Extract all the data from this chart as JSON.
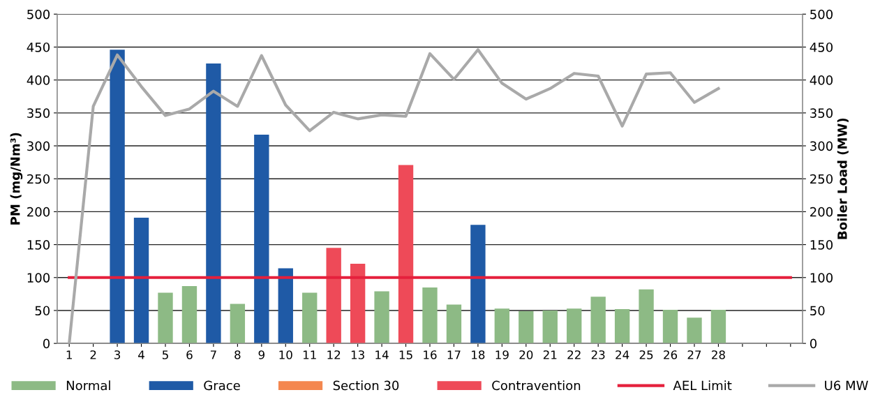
{
  "chart_data": {
    "type": "bar",
    "ylabel": "PM (mg/Nm³)",
    "y2label": "Boiler Load (MW)",
    "categories": [
      "1",
      "2",
      "3",
      "4",
      "5",
      "6",
      "7",
      "8",
      "9",
      "10",
      "11",
      "12",
      "13",
      "14",
      "15",
      "16",
      "17",
      "18",
      "19",
      "20",
      "21",
      "22",
      "23",
      "24",
      "25",
      "26",
      "27",
      "28",
      null,
      null,
      null
    ],
    "series": [
      {
        "name": "Normal",
        "color": "#8dba85",
        "values": [
          null,
          null,
          null,
          null,
          77,
          87,
          null,
          60,
          null,
          null,
          77,
          null,
          null,
          79,
          null,
          85,
          59,
          null,
          53,
          49,
          50,
          53,
          71,
          52,
          82,
          51,
          39,
          51,
          null,
          null,
          null
        ]
      },
      {
        "name": "Grace",
        "color": "#1f5aa6",
        "values": [
          null,
          null,
          446,
          191,
          null,
          null,
          425,
          null,
          317,
          114,
          null,
          null,
          null,
          null,
          null,
          null,
          null,
          180,
          null,
          null,
          null,
          null,
          null,
          null,
          null,
          null,
          null,
          null,
          null,
          null,
          null
        ]
      },
      {
        "name": "Section 30",
        "color": "#f4874f",
        "values": [
          null,
          null,
          null,
          null,
          null,
          null,
          null,
          null,
          null,
          null,
          null,
          null,
          null,
          null,
          null,
          null,
          null,
          null,
          null,
          null,
          null,
          null,
          null,
          null,
          null,
          null,
          null,
          null,
          null,
          null,
          null
        ]
      },
      {
        "name": "Contravention",
        "color": "#ee4a58",
        "values": [
          null,
          null,
          null,
          null,
          null,
          null,
          null,
          null,
          null,
          null,
          null,
          145,
          121,
          null,
          271,
          null,
          null,
          null,
          null,
          null,
          null,
          null,
          null,
          null,
          null,
          null,
          null,
          null,
          null,
          null,
          null
        ]
      },
      {
        "name": "AEL Limit",
        "type": "line",
        "color": "#e5203c",
        "values": [
          100,
          100,
          100,
          100,
          100,
          100,
          100,
          100,
          100,
          100,
          100,
          100,
          100,
          100,
          100,
          100,
          100,
          100,
          100,
          100,
          100,
          100,
          100,
          100,
          100,
          100,
          100,
          100,
          100,
          100,
          100
        ]
      },
      {
        "name": "U6 MW",
        "type": "line",
        "axis": "y2",
        "color": "#a9a9a9",
        "values": [
          0,
          360,
          438,
          390,
          346,
          356,
          383,
          360,
          437,
          362,
          323,
          351,
          341,
          347,
          345,
          440,
          401,
          446,
          395,
          371,
          387,
          410,
          406,
          330,
          409,
          411,
          366,
          387,
          null,
          null,
          null
        ]
      }
    ],
    "ylim": [
      0,
      500
    ],
    "yticks": [
      0,
      50,
      100,
      150,
      200,
      250,
      300,
      350,
      400,
      450,
      500
    ],
    "y2lim": [
      0,
      500
    ],
    "y2ticks": [
      0,
      50,
      100,
      150,
      200,
      250,
      300,
      350,
      400,
      450,
      500
    ],
    "grid": "y",
    "legend": "bottom"
  }
}
